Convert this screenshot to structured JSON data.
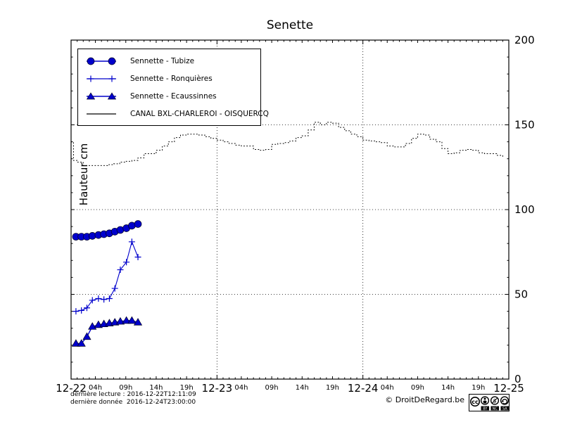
{
  "title": "Senette",
  "ylabel": "Hauteur cm",
  "copyright": "© DroitDeRegard.be",
  "footer": {
    "line1": "dernière lecture : 2016-12-22T12:11:09",
    "line2": "dernière donnée  2016-12-24T23:00:00"
  },
  "cc_badge": {
    "cc_text": "cc",
    "labels": [
      "BY",
      "NC",
      "SA"
    ]
  },
  "chart_data": {
    "type": "line",
    "title": "Senette",
    "xlabel": "",
    "ylabel": "Hauteur cm",
    "ylim": [
      0,
      200
    ],
    "y_ticks": [
      0,
      50,
      100,
      150,
      200
    ],
    "x_day_ticks": [
      "12-22",
      "12-23",
      "12-24",
      "12-25"
    ],
    "x_hour_tick_labels": [
      "04h",
      "09h",
      "14h",
      "19h"
    ],
    "x_hour_tick_hours": [
      4,
      9,
      14,
      19
    ],
    "x_total_hours": 72,
    "grid": true,
    "legend_position": "upper-left",
    "line_color_blue": "#0000cc",
    "line_color_black": "#000000",
    "series": [
      {
        "name": "Sennette - Tubize",
        "marker": "circle",
        "line": "solid",
        "color": "#0000cc",
        "x_hours": [
          0.8,
          1.7,
          2.6,
          3.5,
          4.5,
          5.4,
          6.3,
          7.2,
          8.1,
          9.1,
          10,
          11
        ],
        "values": [
          84,
          84,
          84,
          84.5,
          85,
          85.5,
          86,
          87,
          88,
          89,
          90.5,
          91.5
        ]
      },
      {
        "name": "Sennette - Ronquières",
        "marker": "plus",
        "line": "solid",
        "color": "#0000cc",
        "x_hours": [
          0.8,
          1.7,
          2.6,
          3.5,
          4.5,
          5.4,
          6.3,
          7.2,
          8.1,
          9.1,
          10,
          11
        ],
        "values": [
          40,
          40.5,
          42,
          46.5,
          47.5,
          47,
          47.5,
          53.5,
          64.5,
          69,
          81,
          72
        ]
      },
      {
        "name": "Sennette - Ecaussinnes",
        "marker": "triangle",
        "line": "solid",
        "color": "#0000cc",
        "x_hours": [
          0.8,
          1.7,
          2.6,
          3.5,
          4.5,
          5.4,
          6.3,
          7.2,
          8.1,
          9.1,
          10,
          11
        ],
        "values": [
          21,
          21,
          25,
          31,
          32,
          32.5,
          33,
          33.5,
          34,
          34.5,
          34.5,
          33.5
        ]
      },
      {
        "name": "CANAL BXL-CHARLEROI  - OISQUERCQ",
        "marker": "none",
        "line": "dotted-step",
        "color": "#000000",
        "x_hours": [
          0,
          0.4,
          1,
          2,
          3,
          4,
          5,
          6,
          7,
          8,
          9,
          10,
          11,
          12,
          13,
          14,
          15,
          16,
          17,
          18,
          19,
          20,
          21,
          22,
          23,
          24,
          25,
          26,
          27,
          28,
          29,
          30,
          31,
          32,
          33,
          34,
          35,
          36,
          37,
          38,
          39,
          40,
          41,
          42,
          43,
          44,
          45,
          46,
          47,
          48,
          49,
          50,
          51,
          52,
          53,
          54,
          55,
          56,
          57,
          58,
          59,
          60,
          61,
          62,
          63,
          64,
          65,
          66,
          67,
          68,
          69,
          70,
          71
        ],
        "values": [
          140,
          129,
          128,
          126,
          126,
          126,
          126,
          126.5,
          127,
          128,
          128.5,
          129,
          130.5,
          133,
          133,
          135,
          137.5,
          140,
          142.5,
          144,
          144.5,
          144.5,
          144,
          143,
          142,
          141,
          140,
          139,
          138,
          137.5,
          137.5,
          135.5,
          135,
          135.5,
          138.5,
          139,
          139.5,
          140.5,
          142.5,
          143.5,
          147,
          151.5,
          150,
          151.5,
          151,
          148.5,
          146.5,
          144.5,
          143,
          141,
          140.5,
          140,
          139.5,
          137.5,
          137,
          137,
          139,
          142,
          144.5,
          144,
          141.5,
          140,
          136,
          133,
          133.5,
          135,
          135.5,
          135,
          133.5,
          133,
          133,
          132,
          131
        ]
      }
    ]
  }
}
